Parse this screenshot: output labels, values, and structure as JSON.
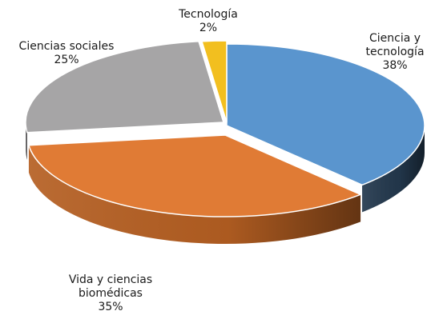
{
  "chart_data": {
    "type": "pie",
    "style": "3d",
    "legend": "none",
    "slices": [
      {
        "label": "Ciencia y tecnología",
        "label_lines": [
          "Ciencia y",
          "tecnología"
        ],
        "value": 38,
        "value_label": "38%",
        "color": "#5a95ce",
        "side_color": "#23384d"
      },
      {
        "label": "Vida y ciencias biomédicas",
        "label_lines": [
          "Vida y ciencias",
          "biomédicas"
        ],
        "value": 35,
        "value_label": "35%",
        "color": "#e07b35",
        "side_color": "#b55f22"
      },
      {
        "label": "Ciencias sociales",
        "label_lines": [
          "Ciencias sociales"
        ],
        "value": 25,
        "value_label": "25%",
        "color": "#a6a5a6",
        "side_color": "#6f6e6f"
      },
      {
        "label": "Tecnología",
        "label_lines": [
          "Tecnología"
        ],
        "value": 2,
        "value_label": "2%",
        "color": "#f2bf1f",
        "side_color": "#b88d10"
      }
    ]
  }
}
